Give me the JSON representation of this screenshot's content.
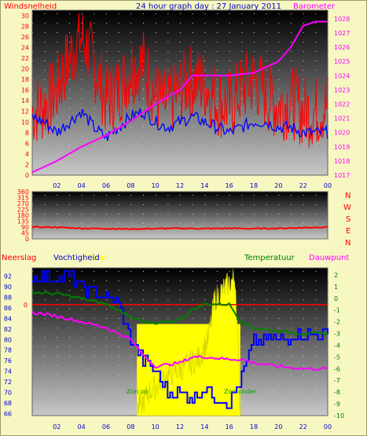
{
  "header": {
    "left_label": "Windsnelheid",
    "title": "24 hour graph day : 27 January 2011",
    "right_label": "Barometer"
  },
  "colors": {
    "windsnelheid": "#ff0000",
    "windsnelheid_avg": "#0000ff",
    "barometer": "#ff00ff",
    "wind_direction": "#ff0000",
    "neerslag": "#ff0000",
    "vochtigheid": "#0000ff",
    "temperatuur": "#008000",
    "dauwpunt": "#ff00ff",
    "solar": "#ffff00"
  },
  "compass": [
    "N",
    "W",
    "S",
    "E",
    "N"
  ],
  "bottom_labels": {
    "neerslag": "Neerslag",
    "vochtigheid": "Vochtigheid",
    "solar": "Solar",
    "temperatuur": "Temperatuur",
    "dauwpunt": "Dauwpunt",
    "zon_op": "Zon op",
    "zon_onder": "Zon onder"
  },
  "chart_data": [
    {
      "type": "line",
      "x_ticks": [
        "02",
        "04",
        "06",
        "08",
        "10",
        "12",
        "14",
        "16",
        "18",
        "20",
        "22",
        "00"
      ],
      "y_left_ticks": [
        0,
        2,
        4,
        6,
        8,
        10,
        12,
        14,
        16,
        18,
        20,
        22,
        24,
        26,
        28,
        30
      ],
      "ylim_left": [
        0,
        31
      ],
      "y_right_ticks": [
        1017,
        1018,
        1019,
        1020,
        1021,
        1022,
        1023,
        1024,
        1025,
        1026,
        1027,
        1028
      ],
      "ylim_right": [
        1017,
        1028.6
      ],
      "series": [
        {
          "name": "Windsnelheid",
          "axis": "left",
          "points": [
            [
              0,
              12
            ],
            [
              1,
              13
            ],
            [
              2,
              16
            ],
            [
              3,
              22
            ],
            [
              4,
              26
            ],
            [
              5,
              21
            ],
            [
              6,
              14
            ],
            [
              7,
              16
            ],
            [
              8,
              20
            ],
            [
              9,
              21
            ],
            [
              10,
              15
            ],
            [
              11,
              13
            ],
            [
              12,
              16
            ],
            [
              13,
              18
            ],
            [
              14,
              17
            ],
            [
              15,
              14
            ],
            [
              16,
              13
            ],
            [
              17,
              16
            ],
            [
              18,
              18
            ],
            [
              19,
              15
            ],
            [
              20,
              13
            ],
            [
              21,
              14
            ],
            [
              22,
              12
            ],
            [
              23,
              12
            ],
            [
              24,
              13
            ]
          ]
        },
        {
          "name": "Windsnelheid gemiddeld",
          "axis": "left",
          "points": [
            [
              0,
              11
            ],
            [
              1,
              10
            ],
            [
              2,
              8
            ],
            [
              3,
              10
            ],
            [
              4,
              12
            ],
            [
              5,
              9
            ],
            [
              6,
              7
            ],
            [
              7,
              9
            ],
            [
              8,
              11
            ],
            [
              9,
              12
            ],
            [
              10,
              10
            ],
            [
              11,
              9
            ],
            [
              12,
              10
            ],
            [
              13,
              11
            ],
            [
              14,
              10
            ],
            [
              15,
              9
            ],
            [
              16,
              8
            ],
            [
              17,
              9
            ],
            [
              18,
              10
            ],
            [
              19,
              10
            ],
            [
              20,
              9
            ],
            [
              21,
              9
            ],
            [
              22,
              8
            ],
            [
              23,
              8
            ],
            [
              24,
              8
            ]
          ]
        },
        {
          "name": "Barometer",
          "axis": "right",
          "points": [
            [
              0,
              1017.2
            ],
            [
              2,
              1018.0
            ],
            [
              4,
              1019.0
            ],
            [
              6,
              1019.8
            ],
            [
              8,
              1020.8
            ],
            [
              10,
              1022.0
            ],
            [
              12,
              1023.0
            ],
            [
              13,
              1024.0
            ],
            [
              16,
              1024.0
            ],
            [
              18,
              1024.2
            ],
            [
              20,
              1025.0
            ],
            [
              21,
              1026.0
            ],
            [
              22,
              1027.5
            ],
            [
              23,
              1027.8
            ],
            [
              24,
              1027.8
            ]
          ]
        }
      ]
    },
    {
      "type": "line",
      "y_ticks": [
        0,
        45,
        90,
        135,
        180,
        225,
        270,
        315,
        360
      ],
      "ylim": [
        0,
        360
      ],
      "series": [
        {
          "name": "Windrichting",
          "points": [
            [
              0,
              90
            ],
            [
              2,
              88
            ],
            [
              4,
              80
            ],
            [
              6,
              78
            ],
            [
              8,
              75
            ],
            [
              10,
              78
            ],
            [
              12,
              80
            ],
            [
              14,
              78
            ],
            [
              16,
              80
            ],
            [
              18,
              78
            ],
            [
              20,
              80
            ],
            [
              22,
              85
            ],
            [
              24,
              90
            ]
          ]
        }
      ]
    },
    {
      "type": "line",
      "x_ticks": [
        "02",
        "04",
        "06",
        "08",
        "10",
        "12",
        "14",
        "16",
        "18",
        "20",
        "22",
        "00"
      ],
      "y_left_ticks": [
        66,
        68,
        70,
        72,
        74,
        76,
        78,
        80,
        82,
        84,
        86,
        88,
        90,
        92
      ],
      "ylim_left": [
        65.6,
        93.6
      ],
      "y_right_ticks": [
        2,
        1,
        0,
        -1,
        -2,
        -3,
        -4,
        -5,
        -6,
        -7,
        -8,
        -9,
        -10
      ],
      "ylim_right": [
        -10,
        2.6
      ],
      "neerslag_level": 0,
      "series": [
        {
          "name": "Vochtigheid",
          "axis": "left",
          "points": [
            [
              0,
              92
            ],
            [
              3,
              92
            ],
            [
              4,
              90
            ],
            [
              6,
              88
            ],
            [
              7,
              87
            ],
            [
              8,
              80
            ],
            [
              9,
              76
            ],
            [
              10,
              74
            ],
            [
              11,
              70
            ],
            [
              12,
              70
            ],
            [
              13,
              69
            ],
            [
              14,
              71
            ],
            [
              15,
              69
            ],
            [
              16,
              68
            ],
            [
              17,
              73
            ],
            [
              18,
              80
            ],
            [
              20,
              80
            ],
            [
              22,
              81
            ],
            [
              24,
              81
            ]
          ]
        },
        {
          "name": "Temperatuur",
          "axis": "right",
          "points": [
            [
              0,
              0.5
            ],
            [
              2,
              0.4
            ],
            [
              4,
              0.0
            ],
            [
              6,
              -0.5
            ],
            [
              8,
              -1.5
            ],
            [
              9,
              -2.0
            ],
            [
              10,
              -2.2
            ],
            [
              12,
              -1.8
            ],
            [
              13,
              -1.0
            ],
            [
              14,
              -0.5
            ],
            [
              16,
              -0.5
            ],
            [
              17,
              -2.0
            ],
            [
              18,
              -2.5
            ],
            [
              20,
              -2.8
            ],
            [
              22,
              -3.0
            ],
            [
              24,
              -3.0
            ]
          ]
        },
        {
          "name": "Dauwpunt",
          "axis": "right",
          "points": [
            [
              0,
              -1.2
            ],
            [
              2,
              -1.5
            ],
            [
              4,
              -2.0
            ],
            [
              6,
              -2.5
            ],
            [
              8,
              -3.5
            ],
            [
              9,
              -4.8
            ],
            [
              10,
              -5.8
            ],
            [
              12,
              -5.5
            ],
            [
              13,
              -5.0
            ],
            [
              14,
              -5.0
            ],
            [
              16,
              -5.2
            ],
            [
              17,
              -5.2
            ],
            [
              18,
              -5.5
            ],
            [
              20,
              -5.8
            ],
            [
              22,
              -6.0
            ],
            [
              24,
              -6.0
            ]
          ]
        },
        {
          "name": "Solar",
          "axis": "none",
          "points": [
            [
              8.5,
              0.0
            ],
            [
              9.5,
              0.12
            ],
            [
              10.5,
              0.2
            ],
            [
              11.5,
              0.26
            ],
            [
              12.5,
              0.3
            ],
            [
              13.5,
              0.35
            ],
            [
              14.3,
              0.48
            ],
            [
              14.8,
              0.75
            ],
            [
              15.5,
              0.82
            ],
            [
              16.5,
              0.9
            ],
            [
              16.9,
              0.0
            ]
          ]
        }
      ]
    }
  ]
}
